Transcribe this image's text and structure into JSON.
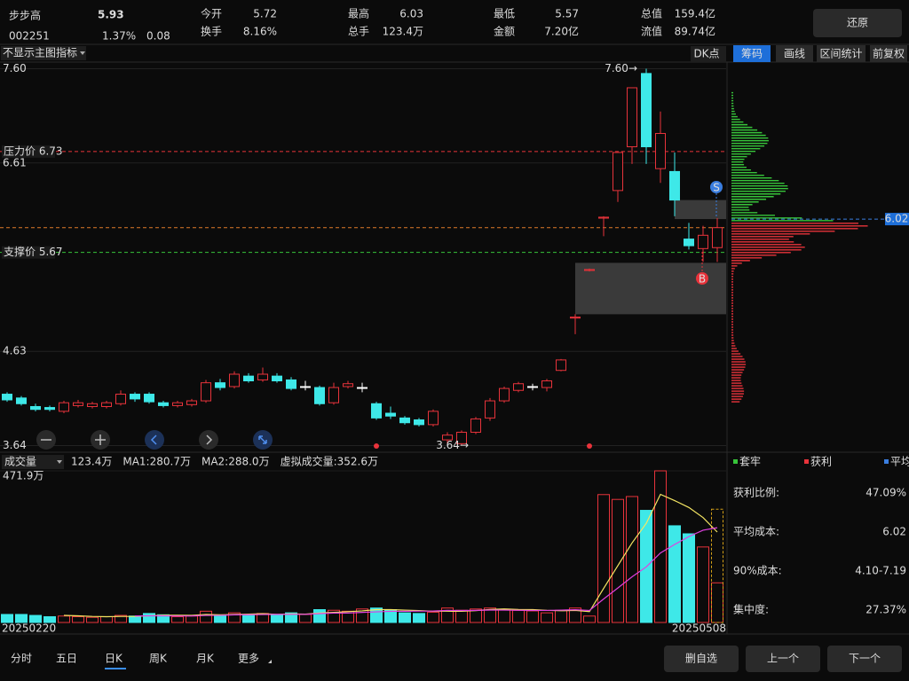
{
  "header": {
    "name": "步步高",
    "price": "5.93",
    "code": "002251",
    "change_pct": "1.37%",
    "change": "0.08",
    "stats": [
      {
        "label": "今开",
        "value": "5.72",
        "color": "#37c43a"
      },
      {
        "label": "换手",
        "value": "8.16%",
        "color": "#ffffff"
      },
      {
        "label": "最高",
        "value": "6.03",
        "color": "#e8333b"
      },
      {
        "label": "总手",
        "value": "123.4万",
        "color": "#ffffff"
      },
      {
        "label": "最低",
        "value": "5.57",
        "color": "#37c43a"
      },
      {
        "label": "金额",
        "value": "7.20亿",
        "color": "#ffffff"
      },
      {
        "label": "总值",
        "value": "159.4亿",
        "color": "#ffffff"
      },
      {
        "label": "流值",
        "value": "89.74亿",
        "color": "#ffffff"
      }
    ],
    "restore_button": "还原"
  },
  "toolbar": {
    "indicator_select": "不显示主图指标",
    "dk_button": "DK点",
    "tabs": [
      "筹码",
      "画线",
      "区间统计",
      "前复权"
    ]
  },
  "chart_data": [
    {
      "type": "candlestick",
      "ylim": [
        3.57,
        7.67
      ],
      "yticks": [
        {
          "value": 7.6,
          "label": "7.60"
        },
        6.61,
        4.63,
        3.64
      ],
      "colors": {
        "up": "#e8333b",
        "down": "#3ee8e8"
      },
      "candles": {
        "open": [
          4.18,
          4.14,
          4.05,
          4.04,
          4.0,
          4.06,
          4.05,
          4.05,
          4.08,
          4.18,
          4.18,
          4.09,
          4.06,
          4.07,
          4.11,
          4.3,
          4.26,
          4.37,
          4.33,
          4.37,
          4.33,
          4.26,
          4.25,
          4.09,
          4.26,
          4.25,
          4.08,
          3.98,
          3.93,
          3.91,
          3.86,
          3.7,
          3.66,
          3.78,
          3.93,
          4.11,
          4.22,
          4.26,
          4.25,
          4.43,
          4.98,
          5.48,
          6.03,
          6.32,
          6.78,
          7.55,
          6.55,
          6.52,
          5.81,
          5.71,
          5.72
        ],
        "close": [
          4.12,
          4.08,
          4.02,
          4.02,
          4.09,
          4.09,
          4.08,
          4.09,
          4.18,
          4.13,
          4.1,
          4.06,
          4.09,
          4.11,
          4.3,
          4.25,
          4.39,
          4.32,
          4.39,
          4.32,
          4.24,
          4.26,
          4.08,
          4.25,
          4.29,
          4.25,
          3.93,
          3.95,
          3.88,
          3.86,
          4.0,
          3.75,
          3.78,
          3.92,
          4.11,
          4.24,
          4.29,
          4.26,
          4.32,
          4.54,
          4.99,
          5.49,
          6.04,
          6.72,
          7.4,
          6.78,
          6.92,
          6.22,
          5.74,
          5.85,
          5.93
        ],
        "high": [
          4.2,
          4.16,
          4.08,
          4.06,
          4.11,
          4.12,
          4.1,
          4.11,
          4.22,
          4.2,
          4.2,
          4.11,
          4.11,
          4.13,
          4.33,
          4.34,
          4.42,
          4.4,
          4.46,
          4.4,
          4.36,
          4.32,
          4.27,
          4.3,
          4.32,
          4.3,
          4.1,
          4.05,
          3.95,
          3.93,
          4.02,
          3.78,
          3.8,
          3.94,
          4.14,
          4.26,
          4.31,
          4.29,
          4.34,
          4.55,
          5.02,
          5.5,
          6.05,
          6.72,
          7.4,
          7.6,
          7.15,
          6.72,
          5.98,
          5.95,
          6.03
        ],
        "low": [
          4.1,
          4.06,
          4.0,
          4.0,
          3.98,
          4.04,
          4.03,
          4.03,
          4.06,
          4.1,
          4.08,
          4.04,
          4.04,
          4.05,
          4.09,
          4.22,
          4.24,
          4.3,
          4.31,
          4.3,
          4.22,
          4.22,
          4.06,
          4.07,
          4.24,
          4.2,
          3.91,
          3.92,
          3.86,
          3.84,
          3.84,
          3.66,
          3.64,
          3.76,
          3.9,
          4.09,
          4.2,
          4.22,
          4.21,
          4.42,
          4.81,
          5.47,
          5.84,
          6.2,
          6.6,
          6.6,
          6.4,
          6.05,
          5.7,
          5.57,
          5.57
        ]
      },
      "resistance": {
        "label": "压力价 6.73",
        "value": 6.73
      },
      "support": {
        "label": "支撑价 5.67",
        "value": 5.67
      },
      "avg_cost": {
        "label": "6.02",
        "value": 6.02
      },
      "high_marker": "7.60→",
      "low_marker": "3.64→",
      "signals": [
        "S",
        "B"
      ],
      "zones": [
        {
          "high": 6.22,
          "low": 6.02
        },
        {
          "high": 5.56,
          "low": 5.02
        }
      ]
    },
    {
      "type": "bar",
      "title": "成交量",
      "values": [
        25,
        25,
        22,
        18,
        20,
        18,
        16,
        18,
        22,
        20,
        28,
        24,
        18,
        20,
        35,
        22,
        30,
        22,
        28,
        24,
        30,
        25,
        40,
        38,
        35,
        42,
        45,
        40,
        30,
        28,
        32,
        45,
        38,
        42,
        45,
        40,
        38,
        36,
        30,
        38,
        45,
        20,
        398,
        383,
        392,
        349,
        471.9,
        301,
        276,
        235,
        123.4
      ],
      "virtual_value": 352.6,
      "ylim": [
        0,
        471.9
      ],
      "yticks": [
        {
          "value": 471.9,
          "label": "471.9万"
        }
      ],
      "legend": [
        {
          "text": "123.4万",
          "color": "#ffffff"
        },
        {
          "text": "MA1:280.7万",
          "color": "#f5e663"
        },
        {
          "text": "MA2:288.0万",
          "color": "#e040e0"
        },
        {
          "text": "虚拟成交量:352.6万",
          "color": "#37c43a"
        }
      ],
      "categories": [
        "20250220",
        null,
        null,
        null,
        null,
        null,
        null,
        null,
        null,
        null,
        null,
        null,
        null,
        null,
        null,
        null,
        null,
        null,
        null,
        null,
        null,
        null,
        null,
        null,
        null,
        null,
        null,
        null,
        null,
        null,
        null,
        null,
        null,
        null,
        null,
        null,
        null,
        null,
        null,
        null,
        null,
        null,
        null,
        null,
        null,
        null,
        null,
        null,
        null,
        null,
        "20250508"
      ]
    }
  ],
  "chips": {
    "legend": [
      {
        "text": "套牢",
        "color": "#37c43a"
      },
      {
        "text": "获利",
        "color": "#e8333b"
      },
      {
        "text": "平均",
        "color": "#3a7ee0"
      }
    ],
    "stats": [
      {
        "label": "获利比例:",
        "value": "47.09%"
      },
      {
        "label": "平均成本:",
        "value": "6.02"
      },
      {
        "label": "90%成本:",
        "value": "4.10-7.19"
      },
      {
        "label": "集中度:",
        "value": "27.37%"
      }
    ]
  },
  "footer": {
    "period_tabs": [
      "分时",
      "五日",
      "日K",
      "周K",
      "月K",
      "更多"
    ],
    "active_tab": 2,
    "buttons": [
      "删自选",
      "上一个",
      "下一个"
    ]
  }
}
